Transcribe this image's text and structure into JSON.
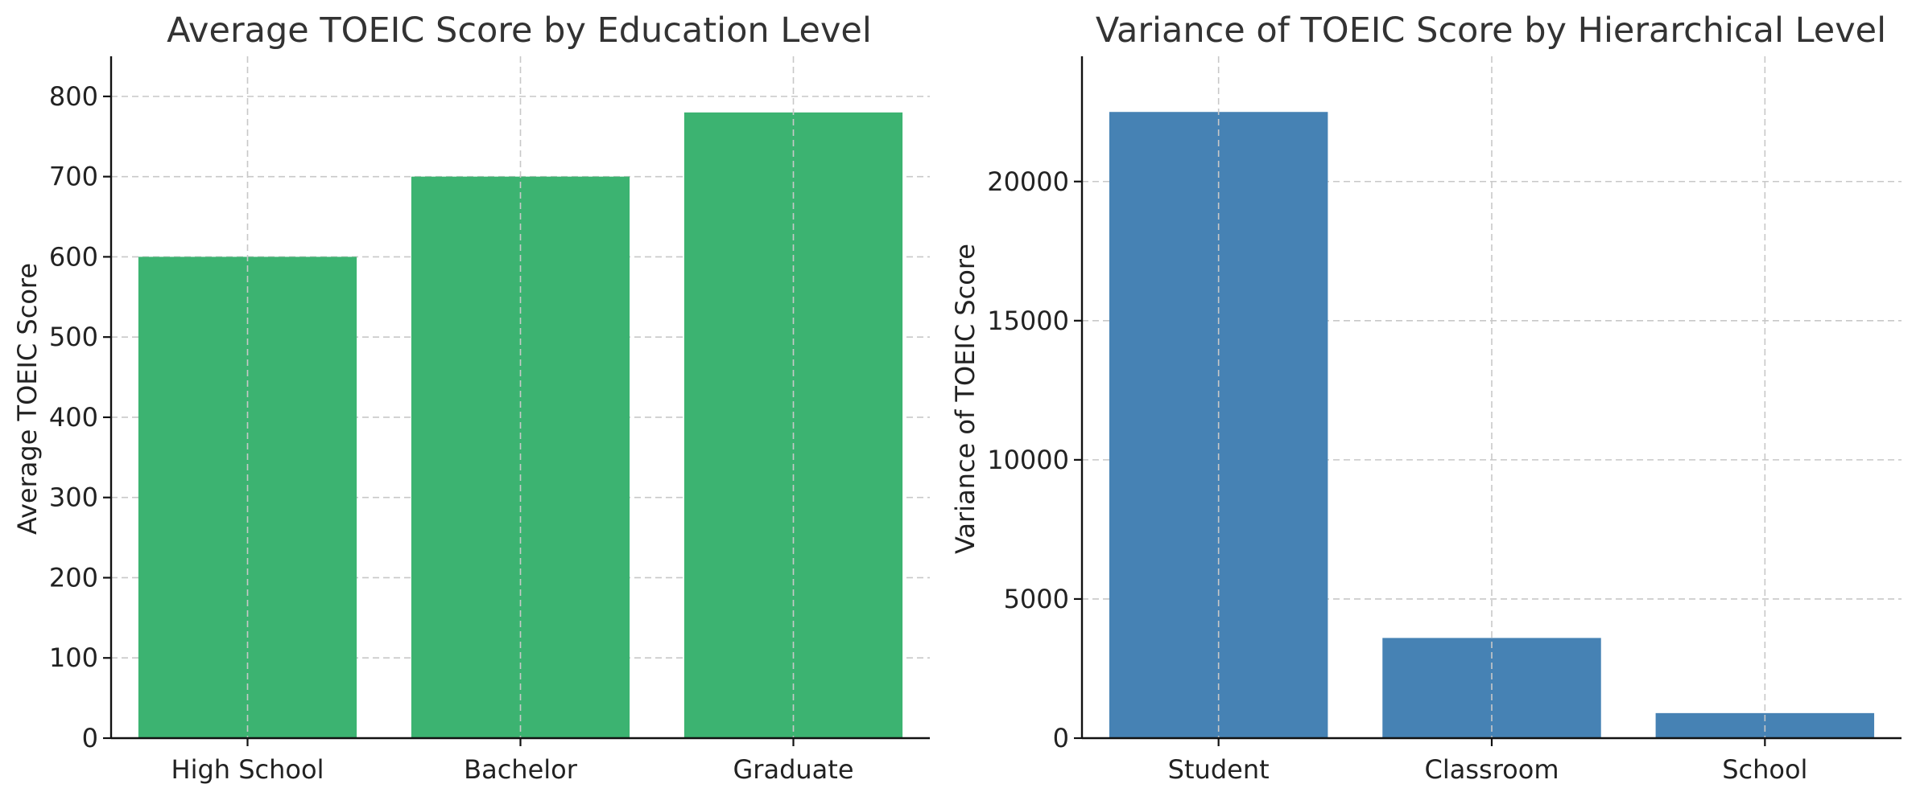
{
  "chart_data": [
    {
      "type": "bar",
      "title": "Average TOEIC Score by Education Level",
      "xlabel": "",
      "ylabel": "Average TOEIC Score",
      "categories": [
        "High School",
        "Bachelor",
        "Graduate"
      ],
      "values": [
        600,
        700,
        780
      ],
      "ylim": [
        0,
        850
      ],
      "yticks": [
        0,
        100,
        200,
        300,
        400,
        500,
        600,
        700,
        800
      ],
      "bar_color": "#3cb371",
      "grid": true
    },
    {
      "type": "bar",
      "title": "Variance of TOEIC Score by Hierarchical Level",
      "xlabel": "",
      "ylabel": "Variance of TOEIC Score",
      "categories": [
        "Student",
        "Classroom",
        "School"
      ],
      "values": [
        22500,
        3600,
        900
      ],
      "ylim": [
        0,
        24500
      ],
      "yticks": [
        0,
        5000,
        10000,
        15000,
        20000
      ],
      "bar_color": "#4682b4",
      "grid": true
    }
  ]
}
